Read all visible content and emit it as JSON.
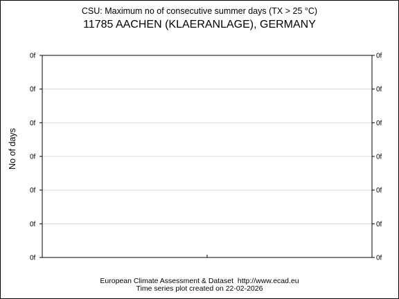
{
  "title_line1": "CSU: Maximum no of consecutive summer days (TX > 25 °C)",
  "title_line2": "11785 AACHEN (KLAERANLAGE), GERMANY",
  "footer_line1": "European Climate Assessment & Dataset  http://www.ecad.eu",
  "footer_line2": "Time series plot created on 22-02-2026",
  "chart_data": {
    "type": "line",
    "title": "CSU: Maximum no of consecutive summer days (TX > 25 °C)",
    "subtitle": "11785 AACHEN (KLAERANLAGE), GERMANY",
    "xlabel": "",
    "ylabel": "No of days",
    "x": [],
    "series": [],
    "y_tick_labels": [
      "0f",
      "0f",
      "0f",
      "0f",
      "0f",
      "0f",
      "0f"
    ],
    "y_tick_count": 7,
    "x_tick_count": 1,
    "grid": true,
    "legend": "none",
    "colors": {
      "frame": "#000000",
      "grid": "#d9d9d9",
      "background": "#ffffff"
    }
  }
}
